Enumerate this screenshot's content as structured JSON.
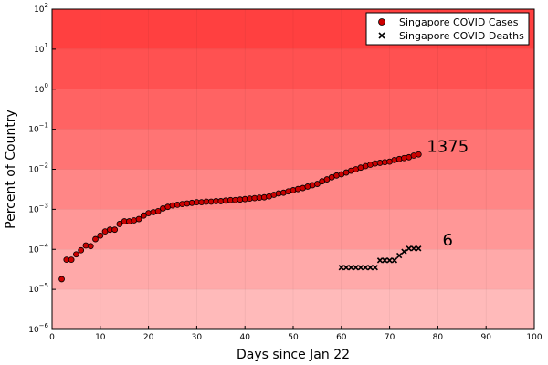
{
  "chart_data": {
    "type": "scatter",
    "xlabel": "Days since Jan 22",
    "ylabel": "Percent of Country",
    "xlim": [
      0,
      100
    ],
    "ylim": [
      1e-06,
      100
    ],
    "yscale": "log",
    "x_ticks": [
      0,
      10,
      20,
      30,
      40,
      50,
      60,
      70,
      80,
      90,
      100
    ],
    "x_tick_labels": [
      "0",
      "10",
      "20",
      "30",
      "40",
      "50",
      "60",
      "70",
      "80",
      "90",
      "100"
    ],
    "y_ticks": [
      1e-06,
      1e-05,
      0.0001,
      0.001,
      0.01,
      0.1,
      1,
      10,
      100
    ],
    "y_tick_labels": [
      {
        "base": "10",
        "exp": "−6"
      },
      {
        "base": "10",
        "exp": "−5"
      },
      {
        "base": "10",
        "exp": "−4"
      },
      {
        "base": "10",
        "exp": "−3"
      },
      {
        "base": "10",
        "exp": "−2"
      },
      {
        "base": "10",
        "exp": "−1"
      },
      {
        "base": "10",
        "exp": "0"
      },
      {
        "base": "10",
        "exp": "1"
      },
      {
        "base": "10",
        "exp": "2"
      }
    ],
    "legend_position": "top-right",
    "background": "red gradient bands by decade, darker toward top",
    "series": [
      {
        "name": "Singapore COVID Cases",
        "marker": "circle",
        "color": "#cc0000",
        "points": [
          [
            2,
            1.8e-05
          ],
          [
            3,
            5.5e-05
          ],
          [
            4,
            5.5e-05
          ],
          [
            5,
            7.5e-05
          ],
          [
            6,
            9.5e-05
          ],
          [
            7,
            0.000125
          ],
          [
            8,
            0.00012
          ],
          [
            9,
            0.00018
          ],
          [
            10,
            0.00022
          ],
          [
            11,
            0.00028
          ],
          [
            12,
            0.00031
          ],
          [
            13,
            0.00031
          ],
          [
            14,
            0.00043
          ],
          [
            15,
            0.0005
          ],
          [
            16,
            0.0005
          ],
          [
            17,
            0.00053
          ],
          [
            18,
            0.00057
          ],
          [
            19,
            0.0007
          ],
          [
            20,
            0.0008
          ],
          [
            21,
            0.00085
          ],
          [
            22,
            0.0009
          ],
          [
            23,
            0.00105
          ],
          [
            24,
            0.00115
          ],
          [
            25,
            0.00125
          ],
          [
            26,
            0.0013
          ],
          [
            27,
            0.00135
          ],
          [
            28,
            0.0014
          ],
          [
            29,
            0.00145
          ],
          [
            30,
            0.0015
          ],
          [
            31,
            0.0015
          ],
          [
            32,
            0.00155
          ],
          [
            33,
            0.00155
          ],
          [
            34,
            0.0016
          ],
          [
            35,
            0.0016
          ],
          [
            36,
            0.00165
          ],
          [
            37,
            0.0017
          ],
          [
            38,
            0.0017
          ],
          [
            39,
            0.00175
          ],
          [
            40,
            0.0018
          ],
          [
            41,
            0.00185
          ],
          [
            42,
            0.0019
          ],
          [
            43,
            0.00195
          ],
          [
            44,
            0.002
          ],
          [
            45,
            0.0021
          ],
          [
            46,
            0.0023
          ],
          [
            47,
            0.0025
          ],
          [
            48,
            0.0026
          ],
          [
            49,
            0.0028
          ],
          [
            50,
            0.003
          ],
          [
            51,
            0.0032
          ],
          [
            52,
            0.0034
          ],
          [
            53,
            0.0037
          ],
          [
            54,
            0.004
          ],
          [
            55,
            0.0043
          ],
          [
            56,
            0.005
          ],
          [
            57,
            0.0056
          ],
          [
            58,
            0.0063
          ],
          [
            59,
            0.007
          ],
          [
            60,
            0.0075
          ],
          [
            61,
            0.0083
          ],
          [
            62,
            0.0092
          ],
          [
            63,
            0.01
          ],
          [
            64,
            0.011
          ],
          [
            65,
            0.012
          ],
          [
            66,
            0.013
          ],
          [
            67,
            0.014
          ],
          [
            68,
            0.0145
          ],
          [
            69,
            0.015
          ],
          [
            70,
            0.0155
          ],
          [
            71,
            0.017
          ],
          [
            72,
            0.018
          ],
          [
            73,
            0.019
          ],
          [
            74,
            0.02
          ],
          [
            75,
            0.022
          ],
          [
            76,
            0.0235
          ]
        ]
      },
      {
        "name": "Singapore COVID Deaths",
        "marker": "x",
        "color": "#000000",
        "points": [
          [
            60,
            3.5e-05
          ],
          [
            61,
            3.5e-05
          ],
          [
            62,
            3.5e-05
          ],
          [
            63,
            3.5e-05
          ],
          [
            64,
            3.5e-05
          ],
          [
            65,
            3.5e-05
          ],
          [
            66,
            3.5e-05
          ],
          [
            67,
            3.5e-05
          ],
          [
            68,
            5.3e-05
          ],
          [
            69,
            5.3e-05
          ],
          [
            70,
            5.3e-05
          ],
          [
            71,
            5.3e-05
          ],
          [
            72,
            7e-05
          ],
          [
            73,
            8.8e-05
          ],
          [
            74,
            0.000105
          ],
          [
            75,
            0.000105
          ],
          [
            76,
            0.000105
          ]
        ]
      }
    ],
    "annotations": [
      {
        "text": "1375",
        "x": 76,
        "y": 0.024
      },
      {
        "text": "6",
        "x": 76,
        "y": 0.0001
      }
    ]
  }
}
